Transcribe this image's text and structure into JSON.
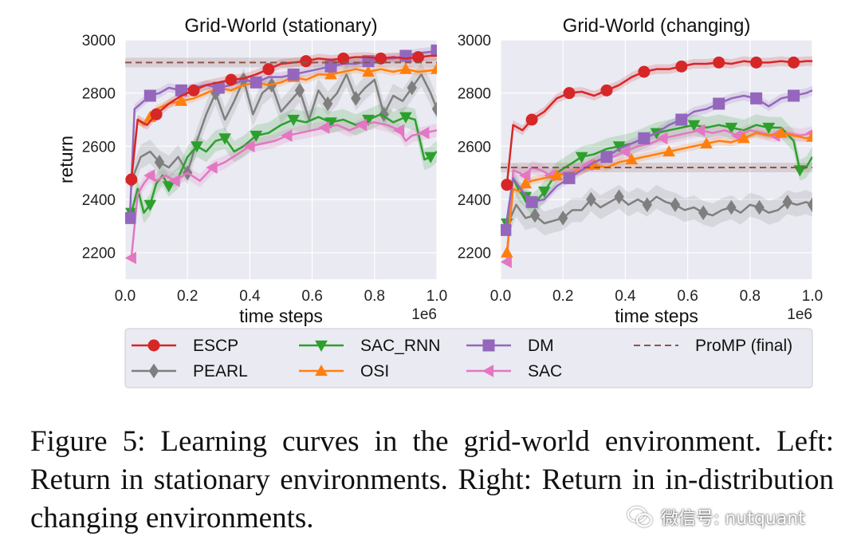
{
  "chart_data": [
    {
      "type": "line",
      "title": "Grid-World (stationary)",
      "xlabel": "time steps",
      "ylabel": "return",
      "x_scale_label": "1e6",
      "xlim": [
        0,
        1.0
      ],
      "ylim": [
        2100,
        3000
      ],
      "xticks": [
        "0.0",
        "0.2",
        "0.4",
        "0.6",
        "0.8",
        "1.0"
      ],
      "yticks": [
        "2200",
        "2400",
        "2600",
        "2800",
        "3000"
      ],
      "grid": true,
      "series": [
        {
          "name": "ESCP",
          "x": [
            0.02,
            0.04,
            0.07,
            0.1,
            0.14,
            0.18,
            0.22,
            0.26,
            0.3,
            0.34,
            0.38,
            0.42,
            0.46,
            0.5,
            0.54,
            0.58,
            0.62,
            0.66,
            0.7,
            0.74,
            0.78,
            0.82,
            0.86,
            0.9,
            0.94,
            0.98,
            1.0
          ],
          "y": [
            2475,
            2700,
            2680,
            2720,
            2760,
            2790,
            2810,
            2830,
            2840,
            2850,
            2855,
            2870,
            2890,
            2910,
            2915,
            2920,
            2930,
            2925,
            2930,
            2935,
            2935,
            2930,
            2935,
            2930,
            2935,
            2940,
            2940
          ]
        },
        {
          "name": "PEARL",
          "x": [
            0.02,
            0.05,
            0.08,
            0.11,
            0.14,
            0.17,
            0.2,
            0.23,
            0.26,
            0.29,
            0.32,
            0.35,
            0.38,
            0.41,
            0.44,
            0.47,
            0.5,
            0.53,
            0.56,
            0.59,
            0.62,
            0.65,
            0.68,
            0.71,
            0.74,
            0.77,
            0.8,
            0.83,
            0.86,
            0.89,
            0.92,
            0.95,
            0.98,
            1.0
          ],
          "y": [
            2470,
            2560,
            2580,
            2540,
            2520,
            2560,
            2500,
            2620,
            2720,
            2800,
            2700,
            2770,
            2850,
            2720,
            2800,
            2830,
            2730,
            2770,
            2810,
            2700,
            2810,
            2760,
            2800,
            2870,
            2780,
            2820,
            2850,
            2720,
            2790,
            2770,
            2820,
            2870,
            2800,
            2740
          ]
        },
        {
          "name": "SAC_RNN",
          "x": [
            0.02,
            0.04,
            0.06,
            0.08,
            0.1,
            0.12,
            0.14,
            0.17,
            0.2,
            0.23,
            0.26,
            0.29,
            0.32,
            0.35,
            0.38,
            0.42,
            0.46,
            0.5,
            0.54,
            0.58,
            0.62,
            0.66,
            0.7,
            0.74,
            0.78,
            0.82,
            0.86,
            0.9,
            0.93,
            0.96,
            0.98,
            1.0
          ],
          "y": [
            2350,
            2440,
            2350,
            2380,
            2460,
            2490,
            2450,
            2480,
            2560,
            2600,
            2580,
            2620,
            2630,
            2580,
            2600,
            2640,
            2650,
            2680,
            2700,
            2690,
            2710,
            2690,
            2700,
            2680,
            2700,
            2720,
            2690,
            2710,
            2700,
            2550,
            2560,
            2580
          ]
        },
        {
          "name": "OSI",
          "x": [
            0.02,
            0.04,
            0.06,
            0.08,
            0.1,
            0.14,
            0.18,
            0.22,
            0.26,
            0.3,
            0.34,
            0.38,
            0.42,
            0.46,
            0.5,
            0.54,
            0.58,
            0.62,
            0.66,
            0.7,
            0.74,
            0.78,
            0.82,
            0.86,
            0.9,
            0.94,
            0.98,
            1.0
          ],
          "y": [
            2480,
            2700,
            2680,
            2710,
            2740,
            2760,
            2770,
            2780,
            2800,
            2820,
            2810,
            2830,
            2840,
            2830,
            2840,
            2860,
            2850,
            2870,
            2870,
            2880,
            2890,
            2880,
            2890,
            2880,
            2890,
            2880,
            2885,
            2890
          ]
        },
        {
          "name": "DM",
          "x": [
            0.015,
            0.03,
            0.05,
            0.08,
            0.11,
            0.14,
            0.18,
            0.22,
            0.26,
            0.3,
            0.34,
            0.38,
            0.42,
            0.46,
            0.5,
            0.54,
            0.58,
            0.62,
            0.66,
            0.7,
            0.74,
            0.78,
            0.82,
            0.86,
            0.9,
            0.94,
            0.98,
            1.0
          ],
          "y": [
            2330,
            2740,
            2760,
            2790,
            2800,
            2820,
            2810,
            2820,
            2830,
            2820,
            2830,
            2850,
            2840,
            2860,
            2860,
            2870,
            2880,
            2890,
            2900,
            2910,
            2910,
            2920,
            2930,
            2930,
            2940,
            2950,
            2955,
            2960
          ]
        },
        {
          "name": "SAC",
          "x": [
            0.02,
            0.04,
            0.06,
            0.08,
            0.1,
            0.13,
            0.16,
            0.2,
            0.24,
            0.28,
            0.32,
            0.36,
            0.4,
            0.44,
            0.48,
            0.52,
            0.56,
            0.6,
            0.64,
            0.68,
            0.72,
            0.76,
            0.8,
            0.84,
            0.88,
            0.9,
            0.92,
            0.96,
            1.0
          ],
          "y": [
            2180,
            2420,
            2460,
            2490,
            2470,
            2490,
            2470,
            2500,
            2470,
            2520,
            2540,
            2570,
            2600,
            2610,
            2620,
            2640,
            2650,
            2660,
            2670,
            2680,
            2660,
            2680,
            2690,
            2680,
            2660,
            2620,
            2640,
            2650,
            2660
          ]
        },
        {
          "name": "ProMP (final)",
          "x": [
            0.0,
            1.0
          ],
          "y": [
            2915,
            2915
          ]
        }
      ]
    },
    {
      "type": "line",
      "title": "Grid-World (changing)",
      "xlabel": "time steps",
      "ylabel": "",
      "x_scale_label": "1e6",
      "xlim": [
        0,
        1.0
      ],
      "ylim": [
        2100,
        3000
      ],
      "xticks": [
        "0.0",
        "0.2",
        "0.4",
        "0.6",
        "0.8",
        "1.0"
      ],
      "yticks": [
        "2200",
        "2400",
        "2600",
        "2800",
        "3000"
      ],
      "grid": true,
      "series": [
        {
          "name": "ESCP",
          "x": [
            0.02,
            0.04,
            0.07,
            0.1,
            0.14,
            0.18,
            0.22,
            0.26,
            0.3,
            0.34,
            0.38,
            0.42,
            0.46,
            0.5,
            0.54,
            0.58,
            0.62,
            0.66,
            0.7,
            0.74,
            0.78,
            0.82,
            0.86,
            0.9,
            0.94,
            0.98,
            1.0
          ],
          "y": [
            2455,
            2680,
            2660,
            2700,
            2730,
            2780,
            2800,
            2805,
            2790,
            2810,
            2830,
            2860,
            2880,
            2890,
            2890,
            2900,
            2910,
            2910,
            2915,
            2910,
            2920,
            2915,
            2915,
            2920,
            2915,
            2920,
            2920
          ]
        },
        {
          "name": "PEARL",
          "x": [
            0.02,
            0.05,
            0.08,
            0.11,
            0.14,
            0.17,
            0.2,
            0.23,
            0.26,
            0.29,
            0.32,
            0.35,
            0.38,
            0.41,
            0.44,
            0.47,
            0.5,
            0.53,
            0.56,
            0.59,
            0.62,
            0.65,
            0.68,
            0.71,
            0.74,
            0.77,
            0.8,
            0.83,
            0.86,
            0.89,
            0.92,
            0.95,
            0.98,
            1.0
          ],
          "y": [
            2300,
            2380,
            2330,
            2340,
            2310,
            2320,
            2330,
            2360,
            2360,
            2400,
            2370,
            2390,
            2410,
            2380,
            2400,
            2380,
            2410,
            2390,
            2380,
            2360,
            2370,
            2350,
            2340,
            2360,
            2370,
            2350,
            2380,
            2370,
            2350,
            2360,
            2390,
            2380,
            2390,
            2380
          ]
        },
        {
          "name": "SAC_RNN",
          "x": [
            0.02,
            0.04,
            0.06,
            0.08,
            0.1,
            0.12,
            0.14,
            0.18,
            0.22,
            0.26,
            0.3,
            0.34,
            0.38,
            0.42,
            0.46,
            0.5,
            0.54,
            0.58,
            0.62,
            0.66,
            0.7,
            0.74,
            0.78,
            0.82,
            0.86,
            0.9,
            0.94,
            0.96,
            0.98,
            1.0
          ],
          "y": [
            2310,
            2480,
            2430,
            2410,
            2380,
            2400,
            2430,
            2500,
            2530,
            2560,
            2570,
            2590,
            2600,
            2610,
            2630,
            2650,
            2660,
            2670,
            2680,
            2670,
            2680,
            2670,
            2660,
            2680,
            2670,
            2670,
            2620,
            2510,
            2520,
            2560
          ]
        },
        {
          "name": "OSI",
          "x": [
            0.02,
            0.04,
            0.06,
            0.08,
            0.1,
            0.14,
            0.18,
            0.22,
            0.26,
            0.3,
            0.34,
            0.38,
            0.42,
            0.46,
            0.5,
            0.54,
            0.58,
            0.62,
            0.66,
            0.7,
            0.74,
            0.78,
            0.82,
            0.86,
            0.9,
            0.94,
            0.98,
            1.0
          ],
          "y": [
            2200,
            2440,
            2430,
            2460,
            2470,
            2480,
            2490,
            2500,
            2510,
            2530,
            2520,
            2540,
            2550,
            2560,
            2570,
            2580,
            2590,
            2600,
            2610,
            2620,
            2615,
            2630,
            2650,
            2640,
            2650,
            2640,
            2630,
            2635
          ]
        },
        {
          "name": "DM",
          "x": [
            0.015,
            0.04,
            0.07,
            0.1,
            0.14,
            0.18,
            0.22,
            0.26,
            0.3,
            0.34,
            0.38,
            0.42,
            0.46,
            0.5,
            0.54,
            0.58,
            0.62,
            0.66,
            0.7,
            0.74,
            0.78,
            0.82,
            0.86,
            0.9,
            0.94,
            0.98,
            1.0
          ],
          "y": [
            2285,
            2480,
            2430,
            2390,
            2400,
            2450,
            2480,
            2510,
            2540,
            2560,
            2590,
            2610,
            2630,
            2650,
            2680,
            2700,
            2730,
            2740,
            2760,
            2780,
            2790,
            2780,
            2750,
            2780,
            2790,
            2800,
            2810
          ]
        },
        {
          "name": "SAC",
          "x": [
            0.02,
            0.04,
            0.06,
            0.08,
            0.1,
            0.13,
            0.16,
            0.2,
            0.24,
            0.28,
            0.32,
            0.36,
            0.4,
            0.44,
            0.48,
            0.52,
            0.56,
            0.6,
            0.64,
            0.68,
            0.72,
            0.76,
            0.8,
            0.84,
            0.88,
            0.92,
            0.96,
            1.0
          ],
          "y": [
            2165,
            2510,
            2500,
            2490,
            2520,
            2510,
            2490,
            2500,
            2510,
            2530,
            2550,
            2560,
            2580,
            2600,
            2610,
            2630,
            2640,
            2650,
            2660,
            2650,
            2660,
            2640,
            2660,
            2650,
            2640,
            2650,
            2640,
            2650
          ]
        },
        {
          "name": "ProMP (final)",
          "x": [
            0.0,
            1.0
          ],
          "y": [
            2520,
            2520
          ]
        }
      ]
    }
  ],
  "legend": {
    "placement": "bottom-center",
    "entries": [
      {
        "name": "ESCP",
        "color": "#d62728",
        "marker": "circle"
      },
      {
        "name": "SAC_RNN",
        "color": "#2ca02c",
        "marker": "triangle-down"
      },
      {
        "name": "DM",
        "color": "#9467bd",
        "marker": "square"
      },
      {
        "name": "ProMP (final)",
        "color": "#8c564b",
        "marker": "dashed"
      },
      {
        "name": "PEARL",
        "color": "#7f7f7f",
        "marker": "diamond"
      },
      {
        "name": "OSI",
        "color": "#ff7f0e",
        "marker": "triangle-up"
      },
      {
        "name": "SAC",
        "color": "#e377c2",
        "marker": "triangle-left"
      }
    ]
  },
  "series_styles": {
    "ESCP": {
      "color": "#d62728",
      "marker": "circle"
    },
    "PEARL": {
      "color": "#7f7f7f",
      "marker": "diamond"
    },
    "SAC_RNN": {
      "color": "#2ca02c",
      "marker": "triangle-down"
    },
    "OSI": {
      "color": "#ff7f0e",
      "marker": "triangle-up"
    },
    "DM": {
      "color": "#9467bd",
      "marker": "square"
    },
    "SAC": {
      "color": "#e377c2",
      "marker": "triangle-left"
    },
    "ProMP (final)": {
      "color": "#8c564b",
      "marker": "dashed"
    }
  },
  "caption": {
    "text": "Figure 5: Learning curves in the grid-world environment. Left: Return in stationary environments. Right: Return in in-distribution changing environments."
  },
  "watermark": {
    "text": "微信号: nutquant",
    "icon": "wechat-icon"
  }
}
